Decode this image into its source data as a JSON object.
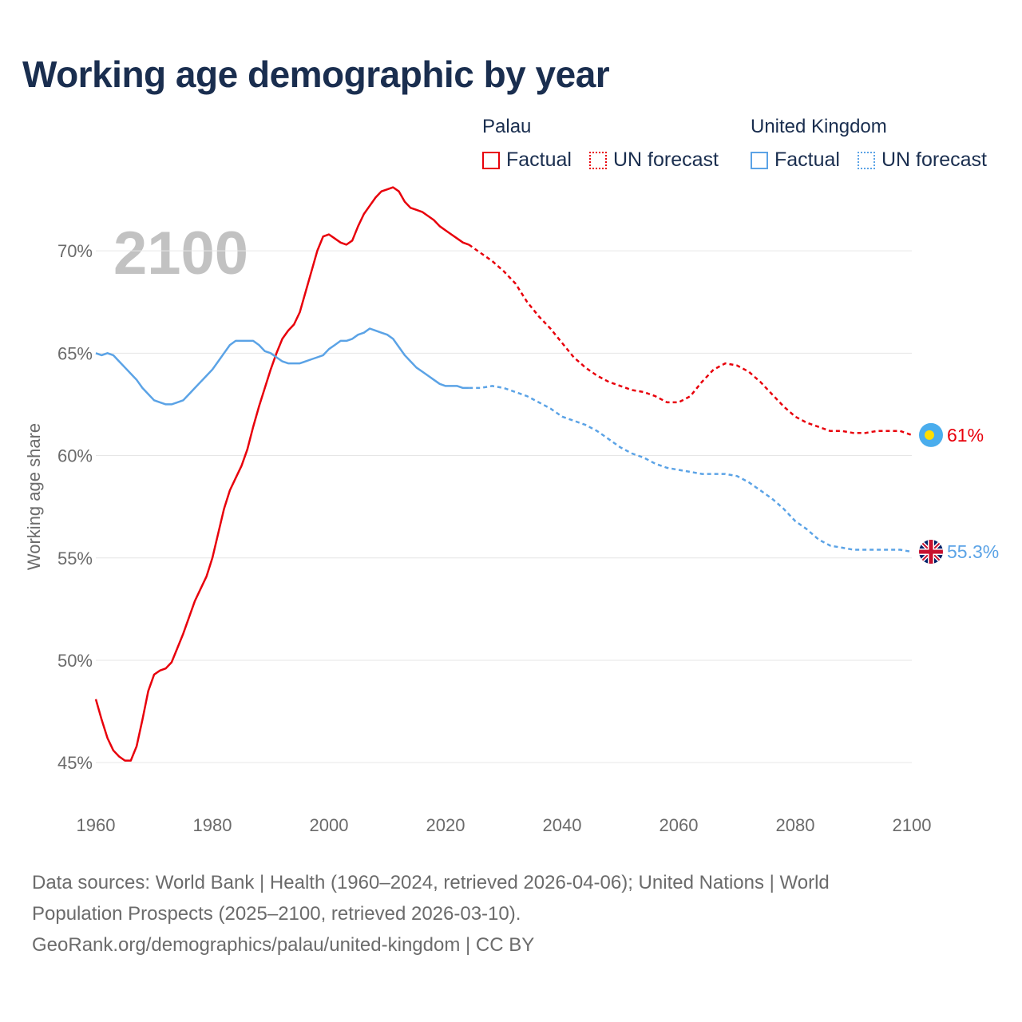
{
  "title": "Working age demographic by year",
  "year_label": "2100",
  "legend": {
    "groups": [
      {
        "name": "Palau",
        "color": "#e8000b",
        "factual_label": "Factual",
        "forecast_label": "UN forecast"
      },
      {
        "name": "United Kingdom",
        "color": "#5ba3e6",
        "factual_label": "Factual",
        "forecast_label": "UN forecast"
      }
    ]
  },
  "footer": {
    "line1": "Data sources: World Bank | Health (1960–2024, retrieved 2026-04-06); United Nations | World",
    "line2": "Population Prospects (2025–2100, retrieved 2026-03-10).",
    "line3": "GeoRank.org/demographics/palau/united-kingdom | CC BY"
  },
  "chart_data": {
    "type": "line",
    "title": "Working age demographic by year",
    "xlabel": "",
    "ylabel": "Working age share",
    "xlim": [
      1960,
      2100
    ],
    "ylim": [
      44.5,
      72.5
    ],
    "x_ticks": [
      1960,
      1980,
      2000,
      2020,
      2040,
      2060,
      2080,
      2100
    ],
    "y_ticks": [
      45,
      50,
      55,
      60,
      65,
      70
    ],
    "y_tick_labels": [
      "45%",
      "50%",
      "55%",
      "60%",
      "65%",
      "70%"
    ],
    "grid": true,
    "factual_end_year": 2024,
    "series": [
      {
        "name": "Palau",
        "color": "#e8000b",
        "end_label": "61%",
        "x": [
          1960,
          1961,
          1962,
          1963,
          1964,
          1965,
          1966,
          1967,
          1968,
          1969,
          1970,
          1971,
          1972,
          1973,
          1974,
          1975,
          1976,
          1977,
          1978,
          1979,
          1980,
          1981,
          1982,
          1983,
          1984,
          1985,
          1986,
          1987,
          1988,
          1989,
          1990,
          1991,
          1992,
          1993,
          1994,
          1995,
          1996,
          1997,
          1998,
          1999,
          2000,
          2001,
          2002,
          2003,
          2004,
          2005,
          2006,
          2007,
          2008,
          2009,
          2010,
          2011,
          2012,
          2013,
          2014,
          2015,
          2016,
          2017,
          2018,
          2019,
          2020,
          2021,
          2022,
          2023,
          2024,
          2026,
          2028,
          2030,
          2032,
          2034,
          2036,
          2038,
          2040,
          2042,
          2044,
          2046,
          2048,
          2050,
          2052,
          2054,
          2056,
          2058,
          2060,
          2062,
          2064,
          2066,
          2068,
          2070,
          2072,
          2074,
          2076,
          2078,
          2080,
          2082,
          2084,
          2086,
          2088,
          2090,
          2092,
          2094,
          2096,
          2098,
          2100
        ],
        "values": [
          48.1,
          47.1,
          46.2,
          45.6,
          45.3,
          45.1,
          45.1,
          45.8,
          47.1,
          48.5,
          49.3,
          49.5,
          49.6,
          49.9,
          50.6,
          51.3,
          52.1,
          52.9,
          53.5,
          54.1,
          55.0,
          56.2,
          57.4,
          58.3,
          58.9,
          59.5,
          60.3,
          61.4,
          62.4,
          63.3,
          64.2,
          65.0,
          65.7,
          66.1,
          66.4,
          67.0,
          68.0,
          69.0,
          70.0,
          70.7,
          70.8,
          70.6,
          70.4,
          70.3,
          70.5,
          71.2,
          71.8,
          72.2,
          72.6,
          72.9,
          73.0,
          73.1,
          72.9,
          72.4,
          72.1,
          72.0,
          71.9,
          71.7,
          71.5,
          71.2,
          71.0,
          70.8,
          70.6,
          70.4,
          70.3,
          69.9,
          69.5,
          69.0,
          68.4,
          67.5,
          66.8,
          66.2,
          65.5,
          64.8,
          64.3,
          63.9,
          63.6,
          63.4,
          63.2,
          63.1,
          62.9,
          62.6,
          62.6,
          62.9,
          63.6,
          64.2,
          64.5,
          64.4,
          64.1,
          63.6,
          63.0,
          62.4,
          61.9,
          61.6,
          61.4,
          61.2,
          61.2,
          61.1,
          61.1,
          61.2,
          61.2,
          61.2,
          61.0
        ]
      },
      {
        "name": "United Kingdom",
        "color": "#5ba3e6",
        "end_label": "55.3%",
        "x": [
          1960,
          1961,
          1962,
          1963,
          1964,
          1965,
          1966,
          1967,
          1968,
          1969,
          1970,
          1971,
          1972,
          1973,
          1974,
          1975,
          1976,
          1977,
          1978,
          1979,
          1980,
          1981,
          1982,
          1983,
          1984,
          1985,
          1986,
          1987,
          1988,
          1989,
          1990,
          1991,
          1992,
          1993,
          1994,
          1995,
          1996,
          1997,
          1998,
          1999,
          2000,
          2001,
          2002,
          2003,
          2004,
          2005,
          2006,
          2007,
          2008,
          2009,
          2010,
          2011,
          2012,
          2013,
          2014,
          2015,
          2016,
          2017,
          2018,
          2019,
          2020,
          2021,
          2022,
          2023,
          2024,
          2026,
          2028,
          2030,
          2032,
          2034,
          2036,
          2038,
          2040,
          2042,
          2044,
          2046,
          2048,
          2050,
          2052,
          2054,
          2056,
          2058,
          2060,
          2062,
          2064,
          2066,
          2068,
          2070,
          2072,
          2074,
          2076,
          2078,
          2080,
          2082,
          2084,
          2086,
          2088,
          2090,
          2092,
          2094,
          2096,
          2098,
          2100
        ],
        "values": [
          65.0,
          64.9,
          65.0,
          64.9,
          64.6,
          64.3,
          64.0,
          63.7,
          63.3,
          63.0,
          62.7,
          62.6,
          62.5,
          62.5,
          62.6,
          62.7,
          63.0,
          63.3,
          63.6,
          63.9,
          64.2,
          64.6,
          65.0,
          65.4,
          65.6,
          65.6,
          65.6,
          65.6,
          65.4,
          65.1,
          65.0,
          64.8,
          64.6,
          64.5,
          64.5,
          64.5,
          64.6,
          64.7,
          64.8,
          64.9,
          65.2,
          65.4,
          65.6,
          65.6,
          65.7,
          65.9,
          66.0,
          66.2,
          66.1,
          66.0,
          65.9,
          65.7,
          65.3,
          64.9,
          64.6,
          64.3,
          64.1,
          63.9,
          63.7,
          63.5,
          63.4,
          63.4,
          63.4,
          63.3,
          63.3,
          63.3,
          63.4,
          63.3,
          63.1,
          62.9,
          62.6,
          62.3,
          61.9,
          61.7,
          61.5,
          61.2,
          60.8,
          60.4,
          60.1,
          59.9,
          59.6,
          59.4,
          59.3,
          59.2,
          59.1,
          59.1,
          59.1,
          59.0,
          58.7,
          58.3,
          57.9,
          57.4,
          56.8,
          56.4,
          55.9,
          55.6,
          55.5,
          55.4,
          55.4,
          55.4,
          55.4,
          55.4,
          55.3
        ]
      }
    ]
  }
}
